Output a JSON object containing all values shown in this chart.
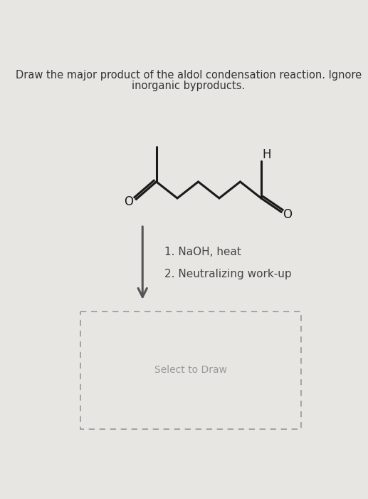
{
  "title_line1": "Draw the major product of the aldol condensation reaction. Ignore",
  "title_line2": "inorganic byproducts.",
  "title_fontsize": 10.5,
  "title_color": "#333333",
  "bg_color": "#e8e6e3",
  "step1_text": "1. NaOH, heat",
  "step2_text": "2. Neutralizing work-up",
  "steps_fontsize": 11,
  "steps_color": "#444444",
  "select_text": "Select to Draw",
  "select_fontsize": 10,
  "select_color": "#999999",
  "line_color": "#1a1a1a",
  "label_color": "#1a1a1a",
  "arrow_color": "#555555",
  "dashed_box_color": "#999999"
}
